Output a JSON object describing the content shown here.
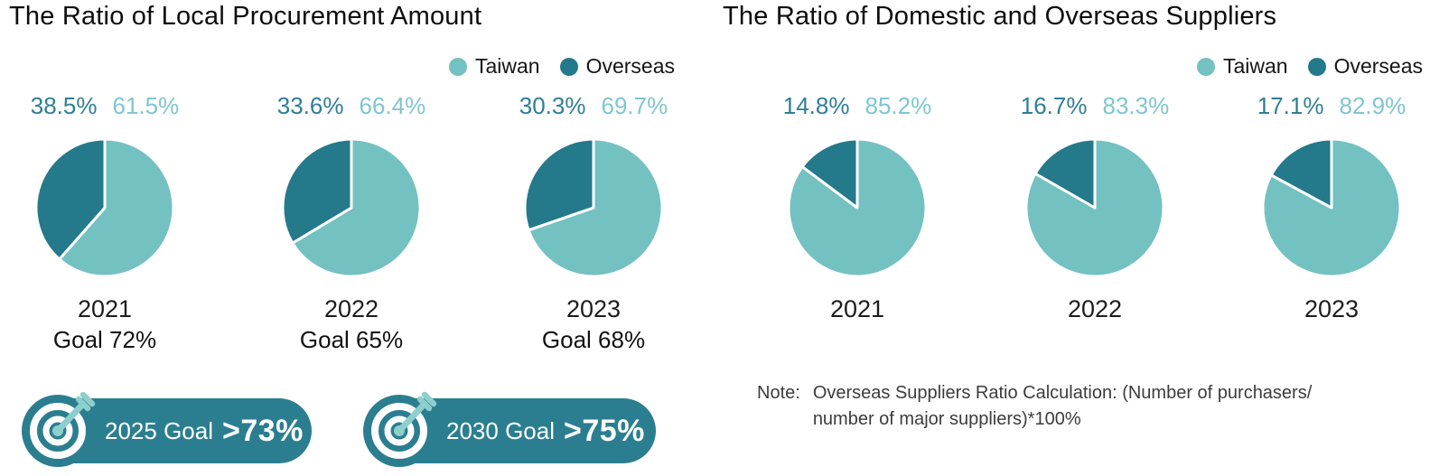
{
  "colors": {
    "taiwan": "#74c1c2",
    "overseas": "#24798b",
    "pct_dark": "#2e7e95",
    "pct_light": "#7fc6d0",
    "badge_bg": "#2b7e90",
    "dart": "#8ccfcc",
    "slice_stroke": "#ffffff"
  },
  "charts": [
    {
      "title": "The Ratio of Local Procurement Amount",
      "legend": {
        "taiwan": "Taiwan",
        "overseas": "Overseas"
      },
      "pies": [
        {
          "year": "2021",
          "overseas_pct": "38.5%",
          "taiwan_pct": "61.5%",
          "goal_word": "Goal",
          "goal_value": "72%"
        },
        {
          "year": "2022",
          "overseas_pct": "33.6%",
          "taiwan_pct": "66.4%",
          "goal_word": "Goal",
          "goal_value": "65%"
        },
        {
          "year": "2023",
          "overseas_pct": "30.3%",
          "taiwan_pct": "69.7%",
          "goal_word": "Goal",
          "goal_value": "68%"
        }
      ],
      "badges": [
        {
          "prefix": "2025 Goal",
          "value": ">73%"
        },
        {
          "prefix": "2030 Goal",
          "value": ">75%"
        }
      ]
    },
    {
      "title": "The Ratio of Domestic and Overseas Suppliers",
      "legend": {
        "taiwan": "Taiwan",
        "overseas": "Overseas"
      },
      "pies": [
        {
          "year": "2021",
          "overseas_pct": "14.8%",
          "taiwan_pct": "85.2%"
        },
        {
          "year": "2022",
          "overseas_pct": "16.7%",
          "taiwan_pct": "83.3%"
        },
        {
          "year": "2023",
          "overseas_pct": "17.1%",
          "taiwan_pct": "82.9%"
        }
      ],
      "note": {
        "label": "Note:",
        "line1": "Overseas Suppliers Ratio Calculation: (Number of purchasers/",
        "line2": "number of major suppliers)*100%"
      }
    }
  ],
  "chart_data": [
    {
      "type": "pie",
      "title": "The Ratio of Local Procurement Amount",
      "categories": [
        "2021",
        "2022",
        "2023"
      ],
      "series": [
        {
          "name": "Taiwan",
          "values": [
            61.5,
            66.4,
            69.7
          ]
        },
        {
          "name": "Overseas",
          "values": [
            38.5,
            33.6,
            30.3
          ]
        }
      ],
      "goals_pct": [
        72,
        65,
        68
      ],
      "future_goals": [
        {
          "year": "2025",
          "goal": ">73%"
        },
        {
          "year": "2030",
          "goal": ">75%"
        }
      ],
      "legend_position": "top-right"
    },
    {
      "type": "pie",
      "title": "The Ratio of Domestic and Overseas Suppliers",
      "categories": [
        "2021",
        "2022",
        "2023"
      ],
      "series": [
        {
          "name": "Taiwan",
          "values": [
            85.2,
            83.3,
            82.9
          ]
        },
        {
          "name": "Overseas",
          "values": [
            14.8,
            16.7,
            17.1
          ]
        }
      ],
      "legend_position": "top-right"
    }
  ]
}
